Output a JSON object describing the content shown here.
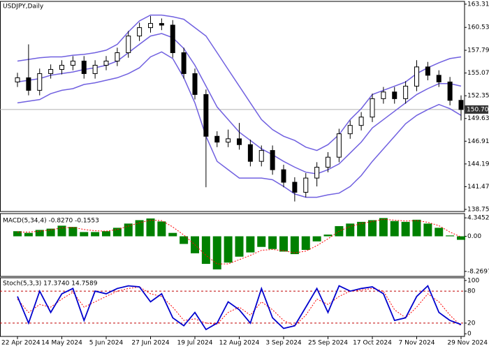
{
  "chart_data": [
    {
      "type": "candlestick",
      "title": "USDJPY,Daily",
      "categories": [
        "22 Apr 2024",
        null,
        null,
        null,
        "14 May 2024",
        null,
        null,
        null,
        "5 Jun 2024",
        null,
        null,
        null,
        "27 Jun 2024",
        null,
        null,
        null,
        "19 Jul 2024",
        null,
        null,
        null,
        "12 Aug 2024",
        null,
        null,
        null,
        "3 Sep 2024",
        null,
        null,
        null,
        "25 Sep 2024",
        null,
        null,
        null,
        "17 Oct 2024",
        null,
        null,
        null,
        "7 Nov 2024",
        null,
        null,
        null,
        "29 Nov 2024"
      ],
      "open": [
        154.0,
        154.5,
        153.0,
        155.0,
        155.5,
        156.0,
        156.5,
        155.0,
        156.0,
        156.5,
        157.5,
        159.5,
        160.5,
        161.0,
        160.8,
        157.5,
        155.0,
        152.5,
        147.5,
        146.8,
        147.2,
        146.5,
        144.5,
        145.8,
        143.5,
        142.0,
        140.8,
        142.5,
        143.8,
        145.0,
        147.8,
        148.8,
        149.8,
        152.0,
        152.8,
        152.0,
        153.5,
        155.8,
        154.8,
        154.0,
        151.8
      ],
      "high": [
        155.1,
        158.5,
        155.6,
        156.1,
        156.6,
        157.1,
        157.1,
        156.6,
        157.1,
        158.1,
        160.1,
        161.1,
        161.9,
        161.6,
        161.4,
        158.1,
        155.6,
        153.1,
        148.1,
        148.3,
        149.1,
        147.1,
        146.4,
        146.4,
        144.1,
        142.6,
        143.1,
        144.4,
        145.6,
        148.4,
        149.4,
        150.4,
        152.6,
        153.4,
        153.4,
        154.1,
        156.6,
        156.4,
        155.4,
        154.6,
        152.4
      ],
      "low": [
        153.4,
        152.4,
        152.4,
        154.4,
        154.9,
        155.4,
        154.4,
        154.4,
        155.4,
        155.9,
        156.9,
        158.9,
        159.9,
        160.2,
        156.9,
        154.4,
        151.9,
        141.4,
        146.2,
        146.2,
        145.9,
        143.9,
        143.9,
        142.9,
        141.4,
        139.7,
        140.2,
        141.5,
        143.2,
        144.4,
        147.2,
        148.2,
        149.2,
        151.4,
        151.4,
        151.4,
        152.9,
        154.2,
        153.4,
        151.2,
        149.4
      ],
      "close": [
        154.5,
        153.0,
        155.0,
        155.5,
        156.0,
        156.5,
        155.0,
        156.0,
        156.5,
        157.5,
        159.5,
        160.5,
        161.0,
        160.8,
        157.5,
        155.0,
        152.5,
        147.5,
        146.8,
        147.2,
        146.5,
        144.5,
        145.8,
        143.5,
        142.0,
        140.8,
        142.5,
        143.8,
        145.0,
        147.8,
        148.8,
        149.8,
        152.0,
        152.8,
        152.0,
        153.5,
        155.8,
        154.8,
        154.0,
        151.8,
        150.702
      ],
      "upper_band": [
        156.5,
        156.7,
        156.9,
        157.0,
        157.0,
        157.2,
        157.3,
        157.5,
        157.8,
        158.5,
        160.0,
        161.3,
        162.0,
        162.0,
        161.8,
        161.5,
        160.5,
        159.5,
        157.5,
        155.5,
        153.5,
        151.5,
        149.5,
        148.3,
        147.5,
        147.0,
        146.2,
        145.8,
        146.5,
        147.7,
        149.5,
        150.8,
        152.5,
        153.0,
        153.5,
        154.0,
        155.0,
        155.7,
        156.3,
        156.8,
        157.0
      ],
      "middle_band": [
        154.0,
        154.2,
        154.4,
        154.8,
        155.0,
        155.2,
        155.5,
        155.7,
        156.0,
        156.5,
        157.5,
        158.5,
        159.5,
        159.8,
        159.3,
        158.0,
        156.0,
        153.5,
        151.0,
        149.5,
        148.0,
        147.0,
        146.0,
        145.3,
        144.5,
        143.8,
        143.2,
        143.0,
        143.5,
        144.2,
        145.5,
        146.8,
        148.5,
        149.5,
        150.5,
        151.5,
        152.5,
        153.2,
        153.8,
        153.8,
        153.5
      ],
      "lower_band": [
        151.5,
        151.7,
        151.9,
        152.6,
        153.0,
        153.2,
        153.7,
        153.9,
        154.2,
        154.5,
        155.0,
        155.7,
        157.0,
        157.6,
        156.8,
        154.5,
        151.5,
        147.5,
        144.5,
        143.5,
        142.5,
        142.5,
        142.5,
        142.3,
        141.5,
        140.6,
        140.2,
        140.2,
        140.5,
        140.7,
        141.5,
        142.8,
        144.5,
        146.0,
        147.5,
        149.0,
        150.0,
        150.7,
        151.3,
        150.8,
        150.0
      ],
      "band_color": "#7060e0",
      "candle_color": "#000000",
      "ylim": [
        138.5,
        163.64
      ],
      "yticks": [
        {
          "value": 163.31,
          "label": "163.310"
        },
        {
          "value": 160.53,
          "label": "160.530"
        },
        {
          "value": 157.79,
          "label": "157.790"
        },
        {
          "value": 155.07,
          "label": "155.070"
        },
        {
          "value": 152.35,
          "label": "152.350"
        },
        {
          "value": 149.63,
          "label": "149.630"
        },
        {
          "value": 146.91,
          "label": "146.910"
        },
        {
          "value": 144.19,
          "label": "144.190"
        },
        {
          "value": 141.47,
          "label": "141.470"
        },
        {
          "value": 138.75,
          "label": "138.750"
        }
      ]
    },
    {
      "type": "macd",
      "title": "MACD(5,34,4) -0.8270 -0.1553",
      "values": [
        1.2,
        0.8,
        1.5,
        1.8,
        2.5,
        2.2,
        1.0,
        1.0,
        1.2,
        2.0,
        3.0,
        3.8,
        4.2,
        3.5,
        0.8,
        -1.8,
        -4.0,
        -6.5,
        -7.8,
        -6.2,
        -4.8,
        -3.8,
        -2.5,
        -3.0,
        -3.6,
        -4.2,
        -3.2,
        -1.2,
        0.4,
        2.4,
        3.0,
        3.4,
        3.8,
        4.3,
        3.6,
        3.4,
        3.9,
        3.0,
        2.0,
        0.2,
        -0.827
      ],
      "signal": [
        1.0,
        1.0,
        1.2,
        1.5,
        2.0,
        2.1,
        1.6,
        1.3,
        1.2,
        1.6,
        2.4,
        3.2,
        3.8,
        3.7,
        2.2,
        0.3,
        -2.0,
        -4.5,
        -6.5,
        -6.5,
        -5.5,
        -4.5,
        -3.3,
        -3.1,
        -3.4,
        -3.9,
        -3.5,
        -2.2,
        -0.6,
        1.2,
        2.3,
        3.0,
        3.5,
        4.0,
        3.8,
        3.6,
        3.7,
        3.3,
        2.5,
        1.0,
        -0.1553
      ],
      "color": "#008000",
      "signal_color": "#ff0000",
      "ylim": [
        -9.45,
        5.35
      ],
      "yticks": [
        4.3452,
        {
          "value": 0,
          "label": "0.00"
        },
        -8.2697
      ]
    },
    {
      "type": "stochastic",
      "title": "Stoch(5,3,3) 17.3740 14.7589",
      "main": [
        70,
        20,
        80,
        40,
        75,
        85,
        25,
        80,
        75,
        85,
        90,
        88,
        60,
        75,
        30,
        15,
        40,
        8,
        20,
        60,
        45,
        20,
        85,
        30,
        10,
        15,
        50,
        85,
        40,
        90,
        80,
        85,
        88,
        75,
        25,
        30,
        70,
        90,
        40,
        25,
        17.374
      ],
      "signal": [
        65,
        40,
        55,
        50,
        65,
        78,
        50,
        60,
        70,
        80,
        85,
        88,
        75,
        70,
        50,
        25,
        28,
        20,
        18,
        40,
        50,
        35,
        60,
        45,
        25,
        15,
        35,
        65,
        55,
        70,
        80,
        82,
        85,
        80,
        45,
        30,
        50,
        75,
        60,
        35,
        14.7589
      ],
      "color": "#0000cd",
      "signal_color": "#ff0000",
      "level_color": "#c00000",
      "levels": [
        80,
        20
      ],
      "ylim": [
        -5,
        105
      ],
      "yticks": [
        100,
        80,
        20,
        0
      ]
    }
  ]
}
